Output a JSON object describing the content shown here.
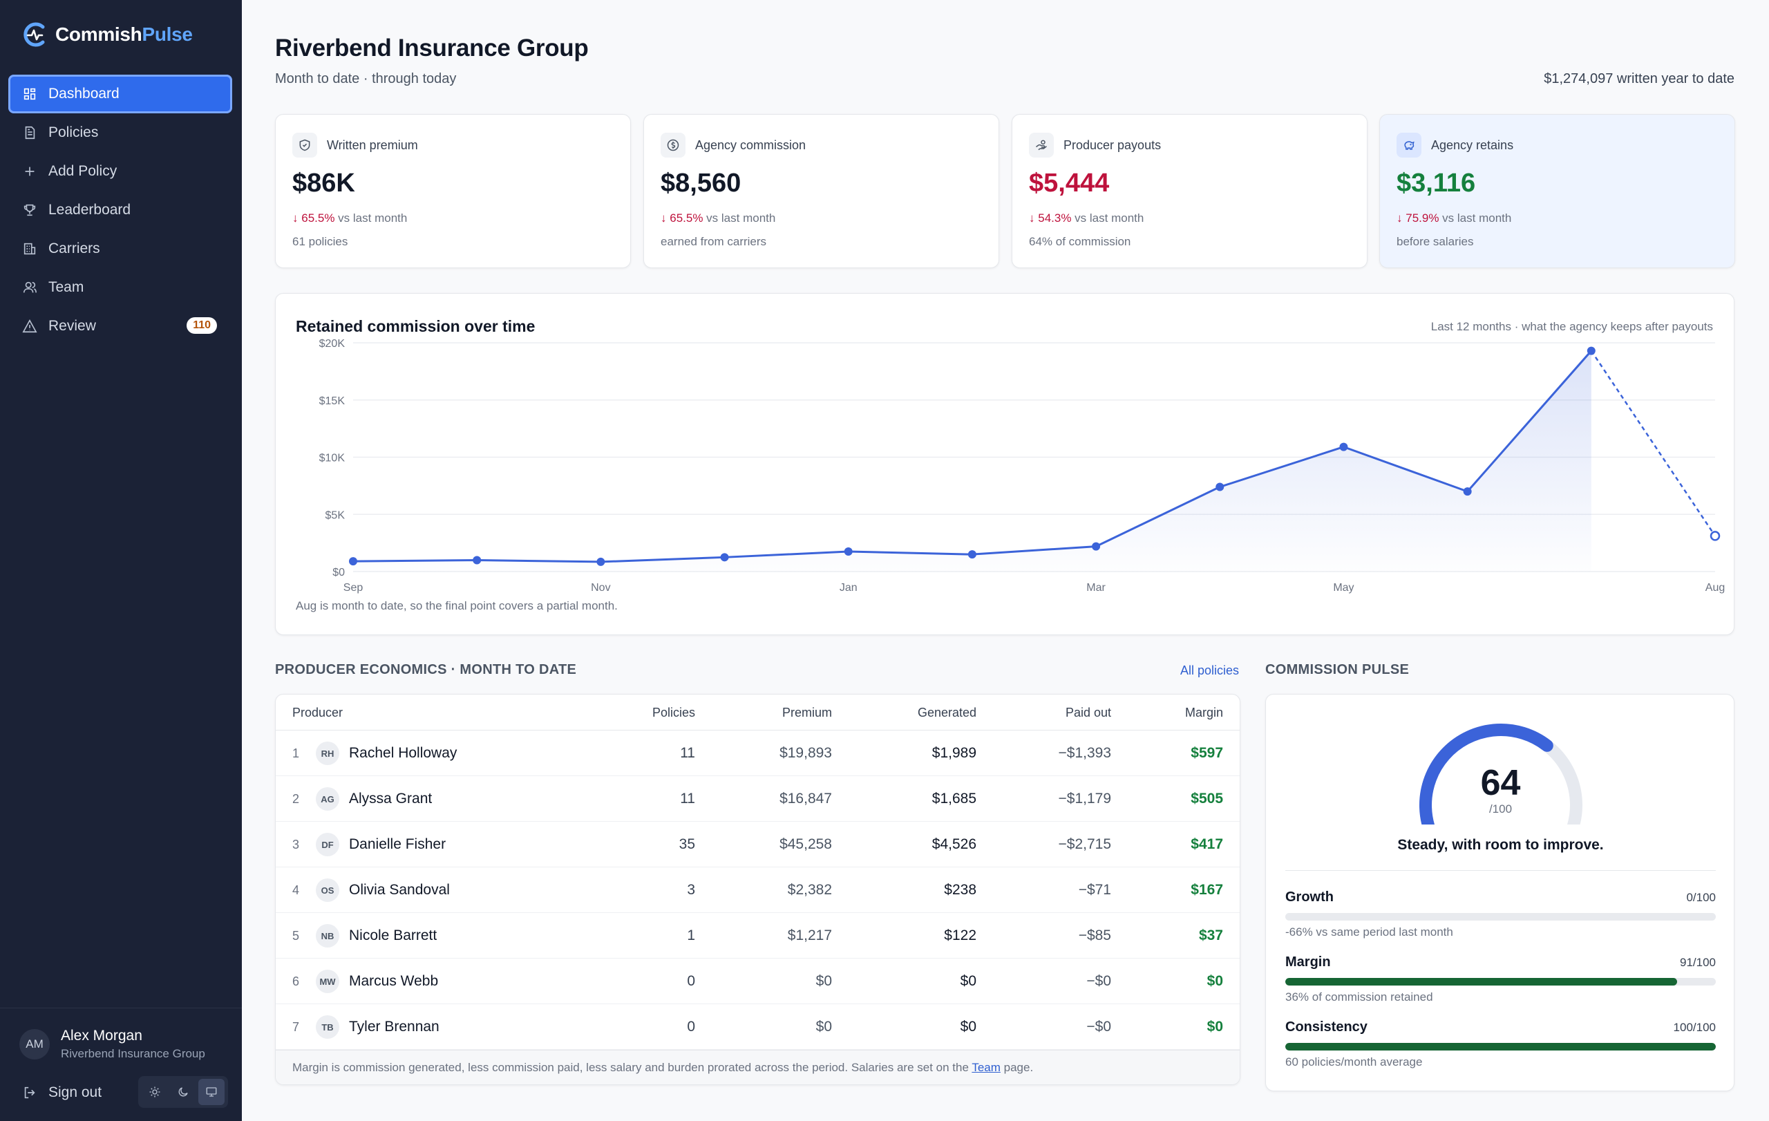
{
  "brand": {
    "name_main": "Commish",
    "name_accent": "Pulse",
    "accent_color": "#60a5fa"
  },
  "sidebar": {
    "items": [
      {
        "label": "Dashboard",
        "icon": "grid-icon",
        "active": true
      },
      {
        "label": "Policies",
        "icon": "document-icon"
      },
      {
        "label": "Add Policy",
        "icon": "plus-icon"
      },
      {
        "label": "Leaderboard",
        "icon": "trophy-icon"
      },
      {
        "label": "Carriers",
        "icon": "building-icon"
      },
      {
        "label": "Team",
        "icon": "users-icon"
      },
      {
        "label": "Review",
        "icon": "warning-icon",
        "badge": "110"
      }
    ],
    "user": {
      "initials": "AM",
      "name": "Alex Morgan",
      "org": "Riverbend Insurance Group"
    },
    "signout_label": "Sign out",
    "theme_options": [
      "sun-icon",
      "moon-icon",
      "monitor-icon"
    ],
    "theme_selected": "monitor-icon"
  },
  "header": {
    "title": "Riverbend Insurance Group",
    "subtitle": "Month to date · through today",
    "ytd": "$1,274,097 written year to date"
  },
  "kpis": [
    {
      "label": "Written premium",
      "icon": "shield-icon",
      "value": "$86K",
      "delta": "65.5%",
      "delta_suffix": "vs last month",
      "note": "61 policies",
      "tone": "neutral"
    },
    {
      "label": "Agency commission",
      "icon": "dollar-icon",
      "value": "$8,560",
      "delta": "65.5%",
      "delta_suffix": "vs last month",
      "note": "earned from carriers",
      "tone": "neutral"
    },
    {
      "label": "Producer payouts",
      "icon": "hand-coins-icon",
      "value": "$5,444",
      "delta": "54.3%",
      "delta_suffix": "vs last month",
      "note": "64% of commission",
      "tone": "red"
    },
    {
      "label": "Agency retains",
      "icon": "piggy-bank-icon",
      "value": "$3,116",
      "delta": "75.9%",
      "delta_suffix": "vs last month",
      "note": "before salaries",
      "tone": "green"
    }
  ],
  "chart": {
    "title": "Retained commission over time",
    "meta": "Last 12 months · what the agency keeps after payouts",
    "footnote": "Aug is month to date, so the final point covers a partial month."
  },
  "chart_data": {
    "type": "line",
    "x": [
      "Sep",
      "Oct",
      "Nov",
      "Dec",
      "Jan",
      "Feb",
      "Mar",
      "Apr",
      "May",
      "Jun",
      "Jul",
      "Aug"
    ],
    "x_tick_labels": [
      "Sep",
      "Nov",
      "Jan",
      "Mar",
      "May",
      "Aug"
    ],
    "series": [
      {
        "values": [
          900,
          1000,
          850,
          1250,
          1750,
          1500,
          2200,
          7400,
          10900,
          7000,
          19300,
          3116
        ],
        "partial_last": true
      }
    ],
    "y_ticks": [
      "$0",
      "$5K",
      "$10K",
      "$15K",
      "$20K"
    ],
    "ylim": [
      0,
      20000
    ],
    "grid": true,
    "line_color": "#3b63d9"
  },
  "economics": {
    "section_label": "PRODUCER ECONOMICS · MONTH TO DATE",
    "link_label": "All policies",
    "headers": {
      "producer": "Producer",
      "policies": "Policies",
      "premium": "Premium",
      "generated": "Generated",
      "paid": "Paid out",
      "margin": "Margin"
    },
    "rows": [
      {
        "rank": "1",
        "initials": "RH",
        "name": "Rachel Holloway",
        "policies": "11",
        "premium": "$19,893",
        "generated": "$1,989",
        "paid": "−$1,393",
        "margin": "$597"
      },
      {
        "rank": "2",
        "initials": "AG",
        "name": "Alyssa Grant",
        "policies": "11",
        "premium": "$16,847",
        "generated": "$1,685",
        "paid": "−$1,179",
        "margin": "$505"
      },
      {
        "rank": "3",
        "initials": "DF",
        "name": "Danielle Fisher",
        "policies": "35",
        "premium": "$45,258",
        "generated": "$4,526",
        "paid": "−$2,715",
        "margin": "$417"
      },
      {
        "rank": "4",
        "initials": "OS",
        "name": "Olivia Sandoval",
        "policies": "3",
        "premium": "$2,382",
        "generated": "$238",
        "paid": "−$71",
        "margin": "$167"
      },
      {
        "rank": "5",
        "initials": "NB",
        "name": "Nicole Barrett",
        "policies": "1",
        "premium": "$1,217",
        "generated": "$122",
        "paid": "−$85",
        "margin": "$37"
      },
      {
        "rank": "6",
        "initials": "MW",
        "name": "Marcus Webb",
        "policies": "0",
        "premium": "$0",
        "generated": "$0",
        "paid": "−$0",
        "margin": "$0"
      },
      {
        "rank": "7",
        "initials": "TB",
        "name": "Tyler Brennan",
        "policies": "0",
        "premium": "$0",
        "generated": "$0",
        "paid": "−$0",
        "margin": "$0"
      }
    ],
    "footnote_pre": "Margin is commission generated, less commission paid, less salary and burden prorated across the period. Salaries are set on the ",
    "footnote_link": "Team",
    "footnote_post": " page."
  },
  "pulse": {
    "section_label": "COMMISSION PULSE",
    "score": "64",
    "score_value": 64,
    "max": "/100",
    "status": "Steady, with room to improve.",
    "gauge_color": "#3b63d9",
    "metrics": [
      {
        "name": "Growth",
        "score": "0/100",
        "fraction": 0.0,
        "note": "-66% vs same period last month"
      },
      {
        "name": "Margin",
        "score": "91/100",
        "fraction": 0.91,
        "note": "36% of commission retained"
      },
      {
        "name": "Consistency",
        "score": "100/100",
        "fraction": 1.0,
        "note": "60 policies/month average"
      }
    ]
  }
}
